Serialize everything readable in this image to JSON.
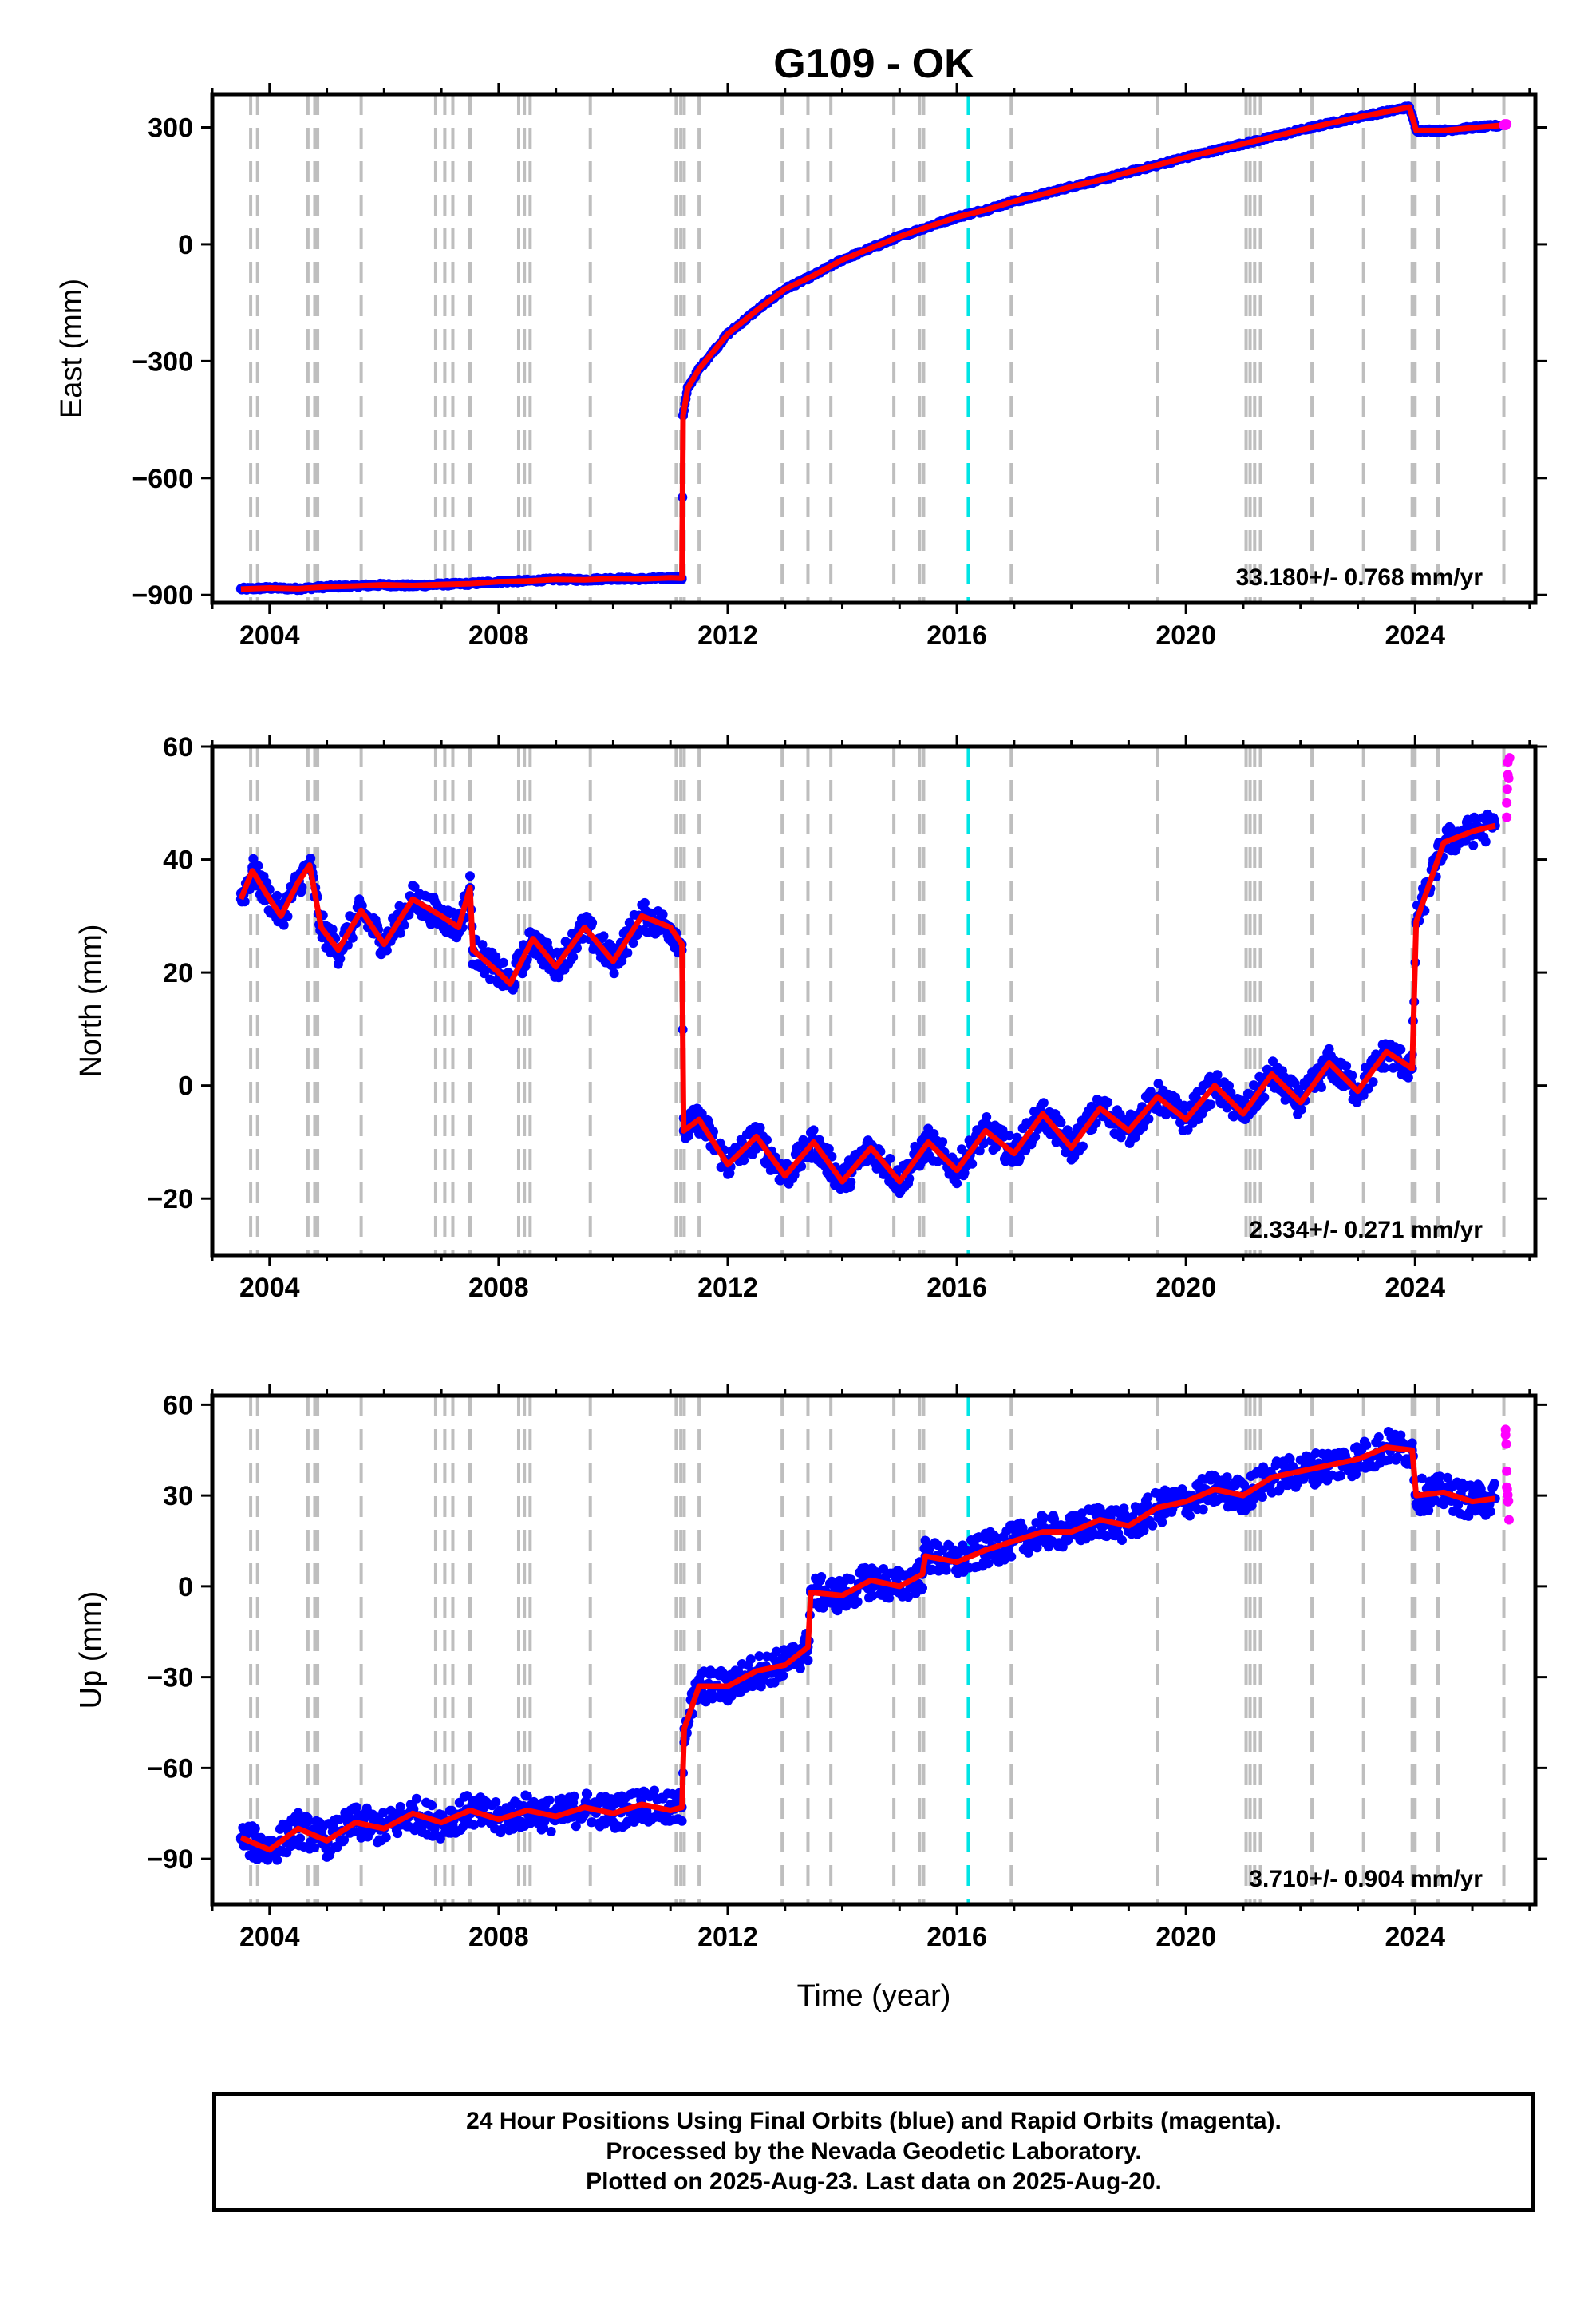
{
  "title": "G109 - OK",
  "xlabel": "Time (year)",
  "footer": {
    "line1": "24 Hour Positions Using Final Orbits (blue) and Rapid Orbits (magenta).",
    "line2": "Processed by the Nevada Geodetic Laboratory.",
    "line3": "Plotted on 2025-Aug-23. Last data on 2025-Aug-20."
  },
  "colors": {
    "final_orbits": "#0000ff",
    "rapid_orbits": "#ff00ff",
    "model": "#ff0000",
    "step_lines": "#bebebe",
    "highlight_line": "#00e5e5"
  },
  "chart_data": [
    {
      "type": "scatter",
      "panel": "east",
      "ylabel": "East (mm)",
      "rate_label": "33.180+/- 0.768 mm/yr",
      "xlim": [
        2003.0,
        2026.1
      ],
      "ylim": [
        -920,
        385
      ],
      "xticks": [
        2004,
        2008,
        2012,
        2016,
        2020,
        2024
      ],
      "yticks": [
        -900,
        -600,
        -300,
        0,
        300
      ],
      "step_lines": [
        2003.67,
        2003.79,
        2004.67,
        2004.79,
        2004.84,
        2005.6,
        2006.9,
        2007.06,
        2007.2,
        2007.5,
        2008.35,
        2008.45,
        2008.55,
        2009.6,
        2011.1,
        2011.18,
        2011.24,
        2011.5,
        2012.95,
        2013.4,
        2013.8,
        2014.9,
        2015.35,
        2015.42,
        2016.95,
        2019.5,
        2021.05,
        2021.12,
        2021.2,
        2021.3,
        2022.2,
        2023.1,
        2023.95,
        2024.0,
        2024.4,
        2025.55
      ],
      "highlight_line": 2016.2,
      "series": [
        {
          "name": "Final Orbits",
          "points": [
            [
              2003.5,
              -885
            ],
            [
              2004.0,
              -882
            ],
            [
              2004.5,
              -884
            ],
            [
              2005.0,
              -879
            ],
            [
              2005.5,
              -877
            ],
            [
              2006.0,
              -874
            ],
            [
              2006.5,
              -876
            ],
            [
              2007.0,
              -873
            ],
            [
              2007.5,
              -871
            ],
            [
              2008.0,
              -866
            ],
            [
              2008.5,
              -864
            ],
            [
              2009.0,
              -860
            ],
            [
              2009.5,
              -861
            ],
            [
              2010.0,
              -858
            ],
            [
              2010.5,
              -859
            ],
            [
              2011.0,
              -856
            ],
            [
              2011.2,
              -857
            ],
            [
              2011.22,
              -440
            ],
            [
              2011.3,
              -370
            ],
            [
              2011.5,
              -320
            ],
            [
              2012.0,
              -230
            ],
            [
              2012.5,
              -170
            ],
            [
              2013.0,
              -115
            ],
            [
              2013.5,
              -80
            ],
            [
              2014.0,
              -40
            ],
            [
              2014.5,
              -10
            ],
            [
              2015.0,
              20
            ],
            [
              2015.5,
              45
            ],
            [
              2016.0,
              70
            ],
            [
              2016.5,
              88
            ],
            [
              2017.0,
              110
            ],
            [
              2017.5,
              128
            ],
            [
              2018.0,
              148
            ],
            [
              2018.5,
              165
            ],
            [
              2019.0,
              185
            ],
            [
              2019.5,
              203
            ],
            [
              2020.0,
              223
            ],
            [
              2020.5,
              240
            ],
            [
              2021.0,
              258
            ],
            [
              2021.5,
              275
            ],
            [
              2022.0,
              293
            ],
            [
              2022.5,
              310
            ],
            [
              2023.0,
              326
            ],
            [
              2023.5,
              340
            ],
            [
              2023.9,
              352
            ],
            [
              2024.02,
              292
            ],
            [
              2024.5,
              292
            ],
            [
              2025.0,
              299
            ],
            [
              2025.5,
              305
            ]
          ]
        },
        {
          "name": "Rapid Orbits",
          "points": [
            [
              2025.55,
              307
            ],
            [
              2025.6,
              309
            ]
          ]
        }
      ]
    },
    {
      "type": "scatter",
      "panel": "north",
      "ylabel": "North (mm)",
      "rate_label": "2.334+/- 0.271 mm/yr",
      "xlim": [
        2003.0,
        2026.1
      ],
      "ylim": [
        -30,
        60
      ],
      "xticks": [
        2004,
        2008,
        2012,
        2016,
        2020,
        2024
      ],
      "yticks": [
        -20,
        0,
        20,
        40,
        60
      ],
      "step_lines": [
        2003.67,
        2003.79,
        2004.67,
        2004.79,
        2004.84,
        2005.6,
        2006.9,
        2007.06,
        2007.2,
        2007.5,
        2008.35,
        2008.45,
        2008.55,
        2009.6,
        2011.1,
        2011.18,
        2011.24,
        2011.5,
        2012.95,
        2013.4,
        2013.8,
        2014.9,
        2015.35,
        2015.42,
        2016.95,
        2019.5,
        2021.05,
        2021.12,
        2021.2,
        2021.3,
        2022.2,
        2023.1,
        2023.95,
        2024.0,
        2024.4,
        2025.55
      ],
      "highlight_line": 2016.2,
      "series": [
        {
          "name": "Final Orbits",
          "points": [
            [
              2003.5,
              33
            ],
            [
              2003.7,
              38
            ],
            [
              2004.0,
              33
            ],
            [
              2004.2,
              30
            ],
            [
              2004.5,
              36
            ],
            [
              2004.7,
              39
            ],
            [
              2004.9,
              28
            ],
            [
              2005.2,
              24
            ],
            [
              2005.6,
              31
            ],
            [
              2006.0,
              25
            ],
            [
              2006.5,
              33
            ],
            [
              2007.0,
              30
            ],
            [
              2007.3,
              28
            ],
            [
              2007.5,
              35
            ],
            [
              2007.55,
              24
            ],
            [
              2008.0,
              20
            ],
            [
              2008.2,
              18
            ],
            [
              2008.6,
              26
            ],
            [
              2009.0,
              21
            ],
            [
              2009.5,
              28
            ],
            [
              2010.0,
              22
            ],
            [
              2010.5,
              30
            ],
            [
              2011.0,
              28
            ],
            [
              2011.2,
              25
            ],
            [
              2011.23,
              -8
            ],
            [
              2011.5,
              -6
            ],
            [
              2012.0,
              -14
            ],
            [
              2012.5,
              -9
            ],
            [
              2013.0,
              -16
            ],
            [
              2013.5,
              -10
            ],
            [
              2014.0,
              -17
            ],
            [
              2014.5,
              -11
            ],
            [
              2015.0,
              -17
            ],
            [
              2015.5,
              -10
            ],
            [
              2016.0,
              -15
            ],
            [
              2016.5,
              -8
            ],
            [
              2017.0,
              -12
            ],
            [
              2017.5,
              -5
            ],
            [
              2018.0,
              -11
            ],
            [
              2018.5,
              -4
            ],
            [
              2019.0,
              -8
            ],
            [
              2019.5,
              -2
            ],
            [
              2020.0,
              -6
            ],
            [
              2020.5,
              0
            ],
            [
              2021.0,
              -5
            ],
            [
              2021.5,
              2
            ],
            [
              2022.0,
              -3
            ],
            [
              2022.5,
              4
            ],
            [
              2023.0,
              -1
            ],
            [
              2023.5,
              6
            ],
            [
              2023.95,
              3
            ],
            [
              2024.02,
              29
            ],
            [
              2024.5,
              43
            ],
            [
              2025.0,
              45
            ],
            [
              2025.4,
              46
            ]
          ]
        },
        {
          "name": "Rapid Orbits",
          "points": [
            [
              2025.6,
              50
            ],
            [
              2025.62,
              55
            ],
            [
              2025.65,
              58
            ]
          ]
        }
      ]
    },
    {
      "type": "scatter",
      "panel": "up",
      "ylabel": "Up (mm)",
      "rate_label": "3.710+/- 0.904 mm/yr",
      "xlim": [
        2003.0,
        2026.1
      ],
      "ylim": [
        -105,
        63
      ],
      "xticks": [
        2004,
        2008,
        2012,
        2016,
        2020,
        2024
      ],
      "yticks": [
        -90,
        -60,
        -30,
        0,
        30,
        60
      ],
      "step_lines": [
        2003.67,
        2003.79,
        2004.67,
        2004.79,
        2004.84,
        2005.6,
        2006.9,
        2007.06,
        2007.2,
        2007.5,
        2008.35,
        2008.45,
        2008.55,
        2009.6,
        2011.1,
        2011.18,
        2011.24,
        2011.5,
        2012.95,
        2013.4,
        2013.8,
        2014.9,
        2015.35,
        2015.42,
        2016.95,
        2019.5,
        2021.05,
        2021.12,
        2021.2,
        2021.3,
        2022.2,
        2023.1,
        2023.95,
        2024.0,
        2024.4,
        2025.55
      ],
      "highlight_line": 2016.2,
      "series": [
        {
          "name": "Final Orbits",
          "points": [
            [
              2003.5,
              -83
            ],
            [
              2004.0,
              -87
            ],
            [
              2004.5,
              -80
            ],
            [
              2005.0,
              -84
            ],
            [
              2005.5,
              -78
            ],
            [
              2006.0,
              -80
            ],
            [
              2006.5,
              -75
            ],
            [
              2007.0,
              -78
            ],
            [
              2007.5,
              -74
            ],
            [
              2008.0,
              -77
            ],
            [
              2008.5,
              -74
            ],
            [
              2009.0,
              -76
            ],
            [
              2009.5,
              -73
            ],
            [
              2010.0,
              -75
            ],
            [
              2010.5,
              -72
            ],
            [
              2011.0,
              -74
            ],
            [
              2011.2,
              -73
            ],
            [
              2011.24,
              -47
            ],
            [
              2011.5,
              -33
            ],
            [
              2012.0,
              -33
            ],
            [
              2012.5,
              -28
            ],
            [
              2013.0,
              -26
            ],
            [
              2013.4,
              -20
            ],
            [
              2013.45,
              -2
            ],
            [
              2014.0,
              -3
            ],
            [
              2014.5,
              2
            ],
            [
              2015.0,
              0
            ],
            [
              2015.4,
              4
            ],
            [
              2015.45,
              10
            ],
            [
              2016.0,
              8
            ],
            [
              2016.5,
              12
            ],
            [
              2017.0,
              15
            ],
            [
              2017.5,
              18
            ],
            [
              2018.0,
              18
            ],
            [
              2018.5,
              22
            ],
            [
              2019.0,
              20
            ],
            [
              2019.5,
              26
            ],
            [
              2020.0,
              28
            ],
            [
              2020.5,
              32
            ],
            [
              2021.0,
              30
            ],
            [
              2021.5,
              36
            ],
            [
              2022.0,
              38
            ],
            [
              2022.5,
              40
            ],
            [
              2023.0,
              42
            ],
            [
              2023.5,
              46
            ],
            [
              2023.95,
              45
            ],
            [
              2024.02,
              30
            ],
            [
              2024.5,
              31
            ],
            [
              2025.0,
              28
            ],
            [
              2025.4,
              29
            ]
          ]
        },
        {
          "name": "Rapid Orbits",
          "points": [
            [
              2025.58,
              50
            ],
            [
              2025.6,
              38
            ],
            [
              2025.62,
              28
            ],
            [
              2025.64,
              22
            ]
          ]
        }
      ]
    }
  ]
}
